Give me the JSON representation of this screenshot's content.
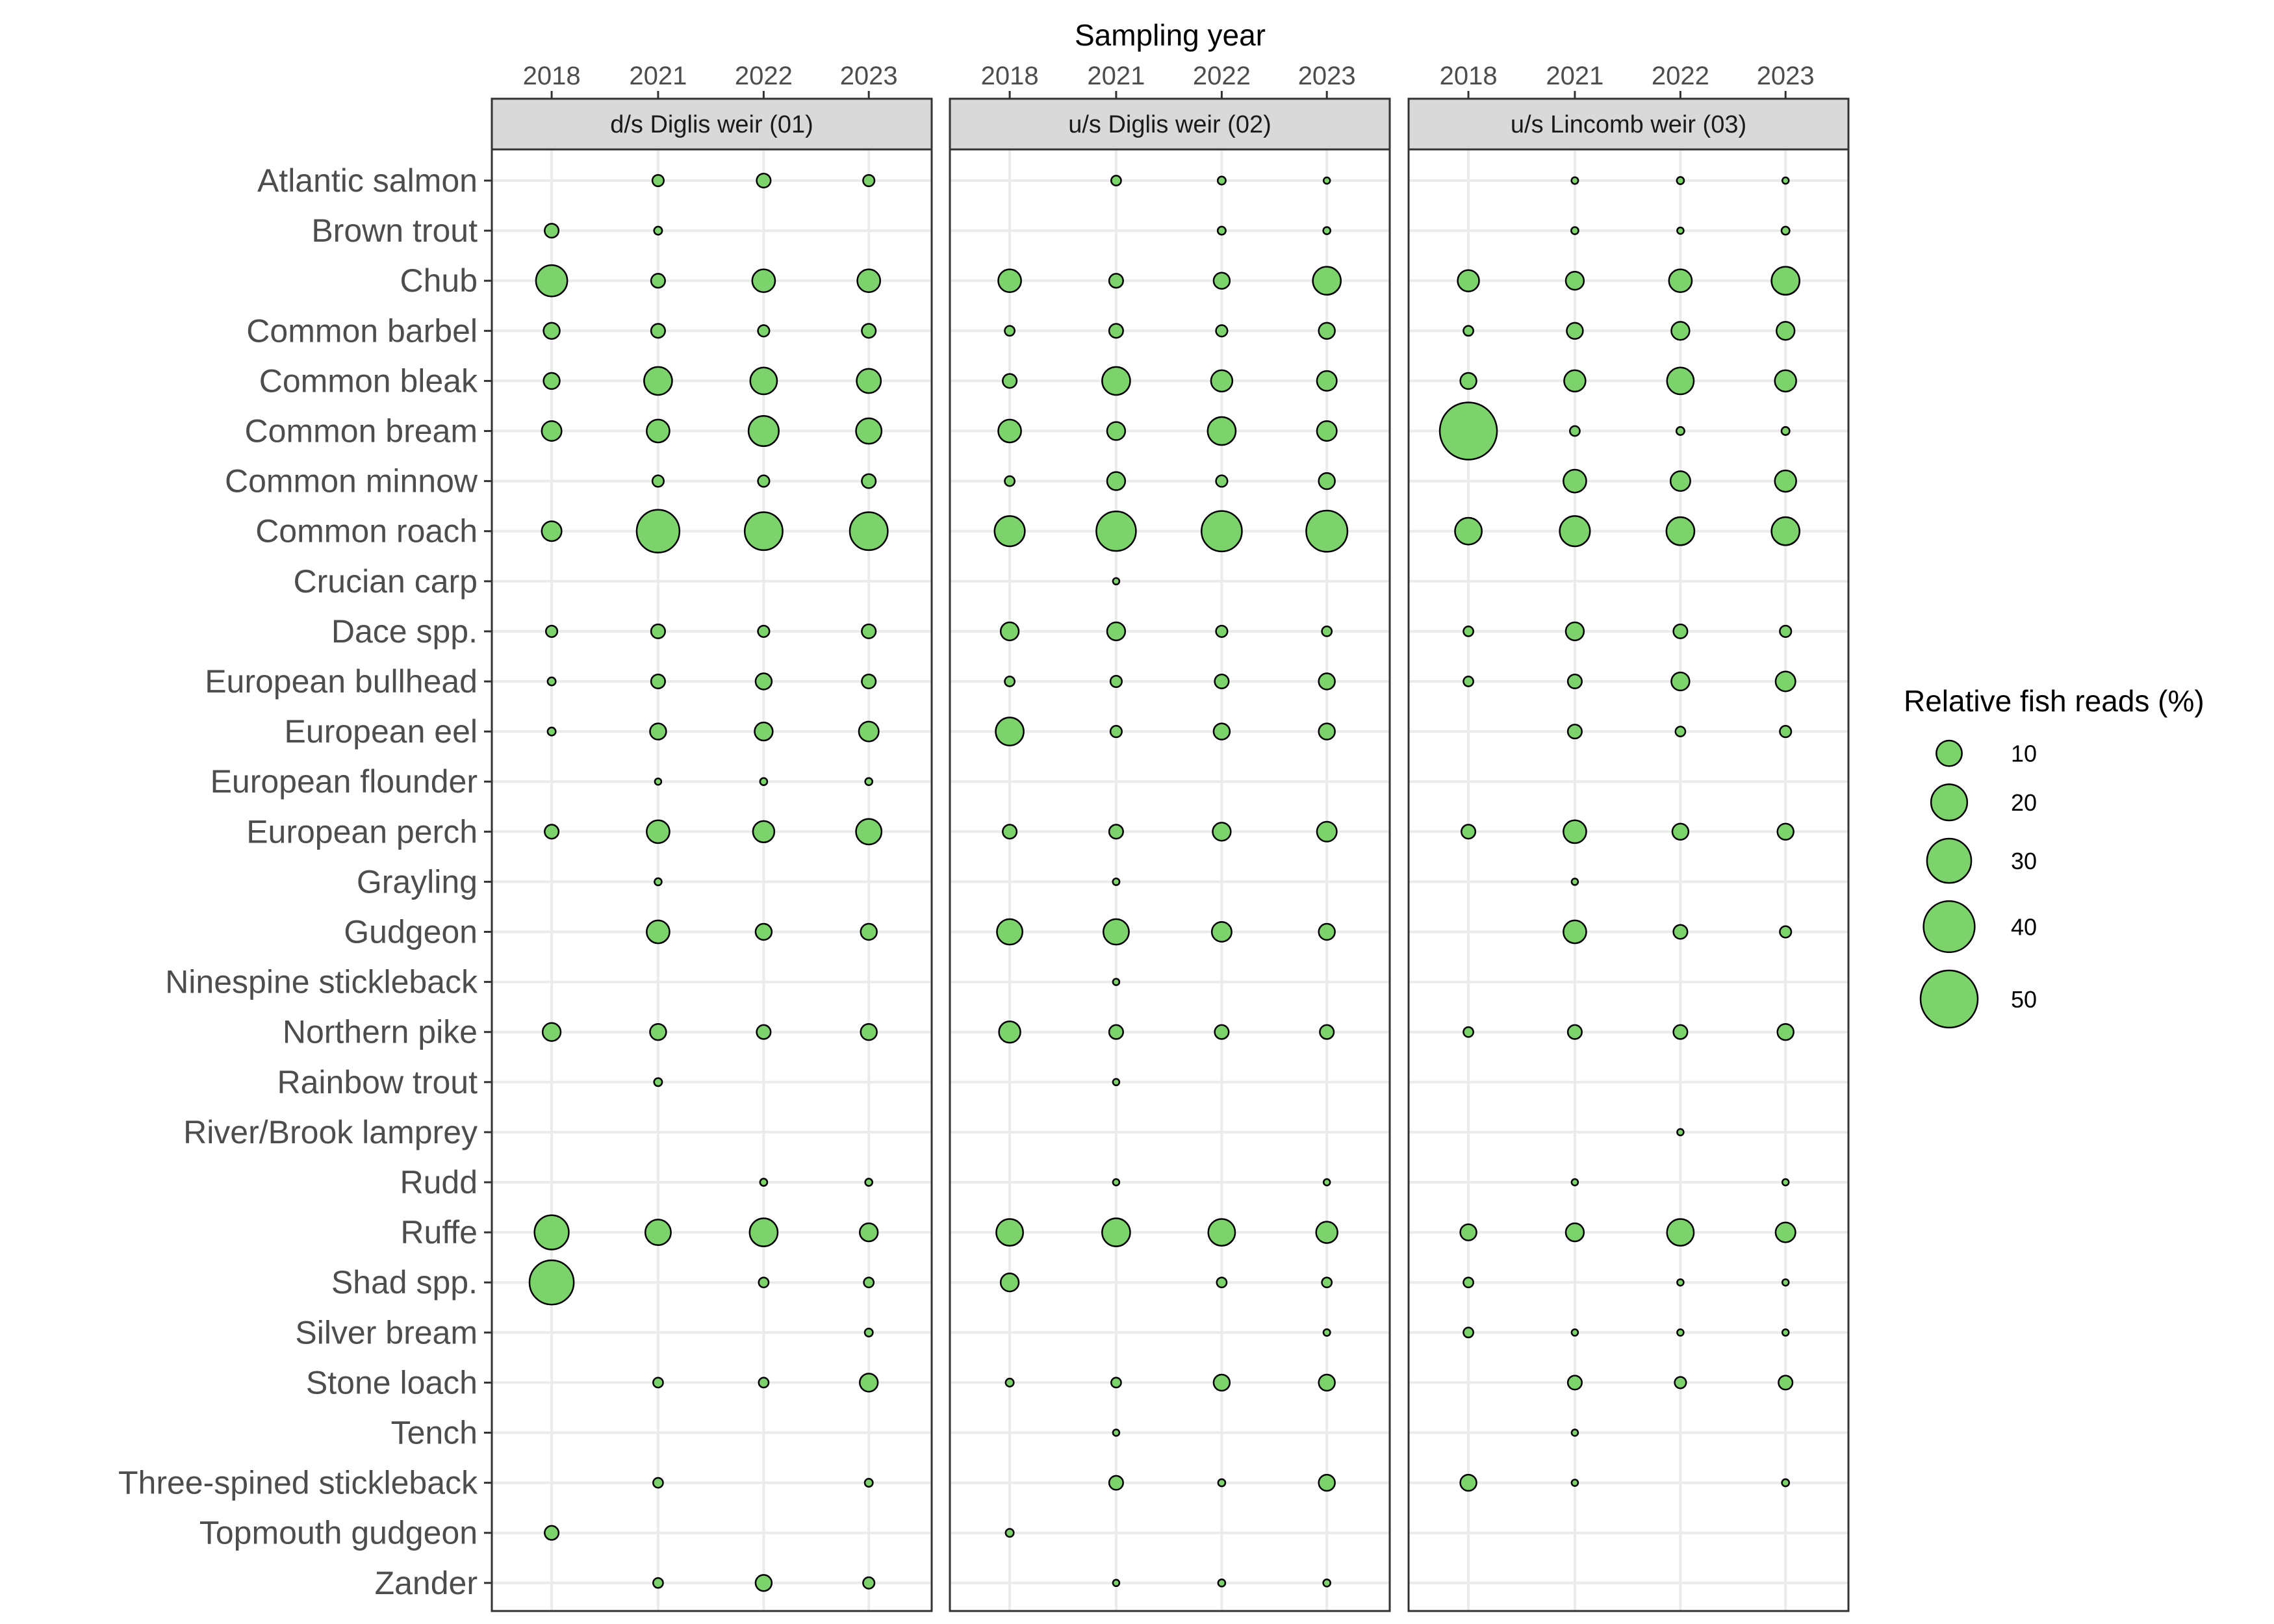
{
  "chart_data": {
    "type": "scatter",
    "subtype": "bubble",
    "xlabel": "Sampling year",
    "years": [
      "2018",
      "2021",
      "2022",
      "2023"
    ],
    "species": [
      "Atlantic salmon",
      "Brown trout",
      "Chub",
      "Common barbel",
      "Common bleak",
      "Common bream",
      "Common minnow",
      "Common roach",
      "Crucian carp",
      "Dace spp.",
      "European bullhead",
      "European eel",
      "European flounder",
      "European perch",
      "Grayling",
      "Gudgeon",
      "Ninespine stickleback",
      "Northern pike",
      "Rainbow trout",
      "River/Brook lamprey",
      "Rudd",
      "Ruffe",
      "Shad spp.",
      "Silver bream",
      "Stone loach",
      "Tench",
      "Three-spined stickleback",
      "Topmouth gudgeon",
      "Zander"
    ],
    "size_legend": {
      "title": "Relative fish reads (%)",
      "values": [
        10,
        20,
        30,
        40,
        50
      ],
      "labels": [
        "10",
        "20",
        "30",
        "40",
        "50"
      ]
    },
    "colors": {
      "fill": "#7dd36b",
      "stroke": "#000000",
      "strip": "#d9d9d9",
      "grid": "#ebebeb"
    },
    "facets": [
      {
        "label": "d/s Diglis weir (01)",
        "values": {
          "Atlantic salmon": [
            null,
            2,
            3,
            2
          ],
          "Brown trout": [
            3,
            1,
            null,
            null
          ],
          "Chub": [
            15,
            3,
            8,
            8
          ],
          "Common barbel": [
            4,
            3,
            2,
            3
          ],
          "Common bleak": [
            4,
            12,
            11,
            9
          ],
          "Common bream": [
            6,
            8,
            14,
            10
          ],
          "Common minnow": [
            null,
            2,
            2,
            3
          ],
          "Common roach": [
            6,
            28,
            22,
            22
          ],
          "Crucian carp": [
            null,
            null,
            null,
            null
          ],
          "Dace spp.": [
            2,
            3,
            2,
            3
          ],
          "European bullhead": [
            1,
            3,
            4,
            3
          ],
          "European eel": [
            1,
            4,
            5,
            6
          ],
          "European flounder": [
            null,
            0.6,
            0.8,
            0.8
          ],
          "European perch": [
            3,
            8,
            7,
            10
          ],
          "Grayling": [
            null,
            0.8,
            null,
            null
          ],
          "Gudgeon": [
            null,
            8,
            4,
            4
          ],
          "Ninespine stickleback": [
            null,
            null,
            null,
            null
          ],
          "Northern pike": [
            5,
            4,
            3,
            4
          ],
          "Rainbow trout": [
            null,
            1,
            null,
            null
          ],
          "River/Brook lamprey": [
            null,
            null,
            null,
            null
          ],
          "Rudd": [
            null,
            null,
            0.8,
            0.8
          ],
          "Ruffe": [
            18,
            10,
            12,
            5
          ],
          "Shad spp.": [
            30,
            null,
            1.5,
            1.5
          ],
          "Silver bream": [
            null,
            null,
            null,
            1
          ],
          "Stone loach": [
            null,
            1.5,
            1.5,
            5
          ],
          "Tench": [
            null,
            null,
            null,
            null
          ],
          "Three-spined stickleback": [
            null,
            1.5,
            null,
            1
          ],
          "Topmouth gudgeon": [
            3,
            null,
            null,
            null
          ],
          "Zander": [
            null,
            1.5,
            4,
            2
          ]
        }
      },
      {
        "label": "u/s Diglis weir (02)",
        "values": {
          "Atlantic salmon": [
            null,
            1.5,
            1,
            0.5
          ],
          "Brown trout": [
            null,
            null,
            1,
            0.8
          ],
          "Chub": [
            8,
            3,
            4,
            12
          ],
          "Common barbel": [
            1.5,
            3,
            2,
            4
          ],
          "Common bleak": [
            3,
            12,
            7,
            6
          ],
          "Common bream": [
            8,
            5,
            12,
            6
          ],
          "Common minnow": [
            1.5,
            5,
            2,
            4
          ],
          "Common roach": [
            14,
            24,
            25,
            26
          ],
          "Crucian carp": [
            null,
            0.3,
            null,
            null
          ],
          "Dace spp.": [
            5,
            5,
            2,
            1.5
          ],
          "European bullhead": [
            1.5,
            2,
            3,
            4
          ],
          "European eel": [
            12,
            2,
            4,
            4
          ],
          "European flounder": [
            null,
            null,
            null,
            null
          ],
          "European perch": [
            3,
            3,
            5,
            6
          ],
          "Grayling": [
            null,
            0.7,
            null,
            null
          ],
          "Gudgeon": [
            10,
            10,
            6,
            4
          ],
          "Ninespine stickleback": [
            null,
            0.3,
            null,
            null
          ],
          "Northern pike": [
            7,
            3,
            3,
            3
          ],
          "Rainbow trout": [
            null,
            0.5,
            null,
            null
          ],
          "River/Brook lamprey": [
            null,
            null,
            null,
            null
          ],
          "Rudd": [
            null,
            0.5,
            null,
            0.4
          ],
          "Ruffe": [
            11,
            12,
            11,
            7
          ],
          "Shad spp.": [
            5,
            null,
            1.5,
            1.5
          ],
          "Silver bream": [
            null,
            null,
            null,
            0.7
          ],
          "Stone loach": [
            1,
            1.5,
            4,
            4
          ],
          "Tench": [
            null,
            0.4,
            null,
            null
          ],
          "Three-spined stickleback": [
            null,
            3,
            0.8,
            4
          ],
          "Topmouth gudgeon": [
            1,
            null,
            null,
            null
          ],
          "Zander": [
            null,
            0.4,
            0.8,
            0.8
          ]
        }
      },
      {
        "label": "u/s Lincomb weir (03)",
        "values": {
          "Atlantic salmon": [
            null,
            0.7,
            0.8,
            0.5
          ],
          "Brown trout": [
            null,
            0.8,
            0.6,
            1
          ],
          "Chub": [
            7,
            5,
            8,
            12
          ],
          "Common barbel": [
            1.5,
            4,
            5,
            5
          ],
          "Common bleak": [
            4,
            7,
            11,
            7
          ],
          "Common bream": [
            50,
            1.5,
            1,
            1
          ],
          "Common minnow": [
            null,
            8,
            6,
            7
          ],
          "Common roach": [
            11,
            14,
            12,
            12
          ],
          "Crucian carp": [
            null,
            null,
            null,
            null
          ],
          "Dace spp.": [
            1.5,
            5,
            3,
            2
          ],
          "European bullhead": [
            1.5,
            3,
            5,
            6
          ],
          "European eel": [
            null,
            3,
            1.5,
            2
          ],
          "European flounder": [
            null,
            null,
            null,
            null
          ],
          "European perch": [
            3,
            8,
            4,
            4
          ],
          "Grayling": [
            null,
            0.5,
            null,
            null
          ],
          "Gudgeon": [
            null,
            8,
            3,
            2
          ],
          "Ninespine stickleback": [
            null,
            null,
            null,
            null
          ],
          "Northern pike": [
            1.5,
            3,
            3,
            4
          ],
          "Rainbow trout": [
            null,
            null,
            null,
            null
          ],
          "River/Brook lamprey": [
            null,
            null,
            0.5,
            null
          ],
          "Rudd": [
            null,
            0.5,
            null,
            0.4
          ],
          "Ruffe": [
            4,
            5,
            11,
            6
          ],
          "Shad spp.": [
            1.5,
            null,
            0.5,
            0.5
          ],
          "Silver bream": [
            1.5,
            0.5,
            0.5,
            0.5
          ],
          "Stone loach": [
            null,
            3,
            2,
            3
          ],
          "Tench": [
            null,
            0.5,
            null,
            null
          ],
          "Three-spined stickleback": [
            4,
            0.4,
            null,
            0.8
          ],
          "Topmouth gudgeon": [
            null,
            null,
            null,
            null
          ],
          "Zander": [
            null,
            null,
            null,
            null
          ]
        }
      }
    ]
  }
}
